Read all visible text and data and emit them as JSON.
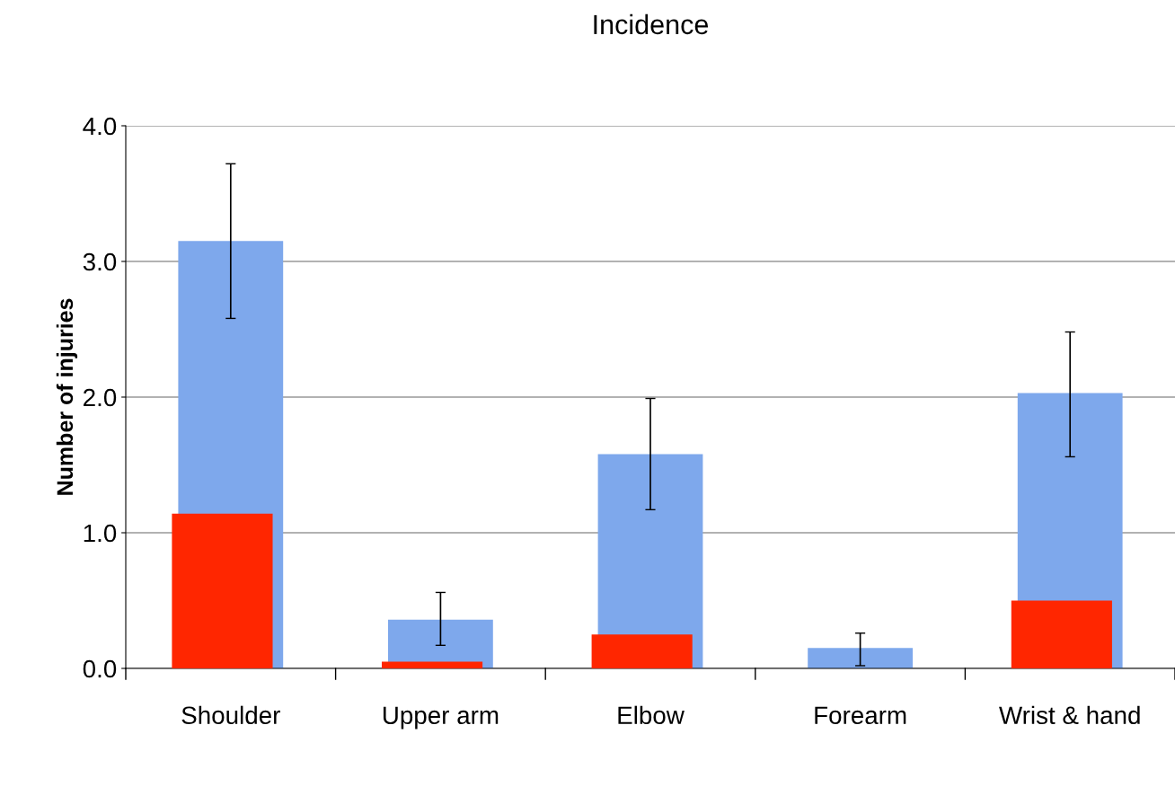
{
  "chart_data": {
    "type": "bar",
    "title": "Incidence",
    "ylabel": "Number of injuries",
    "categories": [
      "Shoulder",
      "Upper arm",
      "Elbow",
      "Forearm",
      "Wrist & hand"
    ],
    "series": [
      {
        "color": "#7ea8ec",
        "values": [
          3.15,
          0.36,
          1.58,
          0.15,
          2.03
        ],
        "errors": [
          [
            2.58,
            3.72
          ],
          [
            0.17,
            0.56
          ],
          [
            1.17,
            1.99
          ],
          [
            0.02,
            0.26
          ],
          [
            1.56,
            2.48
          ]
        ]
      },
      {
        "color": "#ff2600",
        "values": [
          1.14,
          0.05,
          0.25,
          null,
          0.5
        ]
      }
    ],
    "ylim": [
      0,
      4
    ],
    "yticks": [
      {
        "value": 0,
        "label": "0.0"
      },
      {
        "value": 1,
        "label": "1.0"
      },
      {
        "value": 2,
        "label": "2.0"
      },
      {
        "value": 3,
        "label": "3.0"
      },
      {
        "value": 4,
        "label": "4.0"
      }
    ],
    "grid": "y"
  }
}
